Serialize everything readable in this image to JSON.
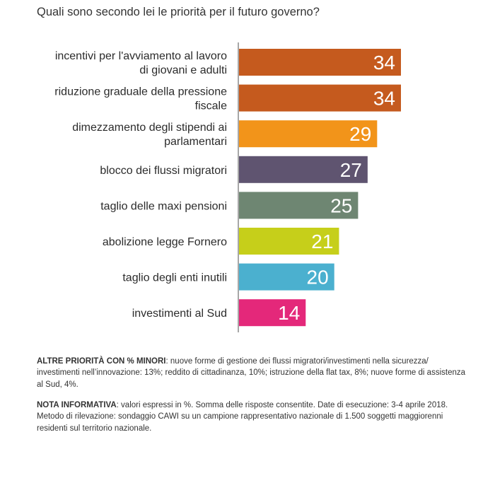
{
  "question": "Quali sono secondo lei le priorità per il futuro governo?",
  "chart_data": {
    "type": "bar",
    "orientation": "horizontal",
    "categories": [
      [
        "incentivi per l'avviamento al lavoro",
        "di giovani e adulti"
      ],
      [
        "riduzione graduale della pressione",
        "fiscale"
      ],
      [
        "dimezzamento degli stipendi ai",
        "parlamentari"
      ],
      [
        "blocco dei flussi migratori"
      ],
      [
        "taglio delle maxi pensioni"
      ],
      [
        "abolizione legge Fornero"
      ],
      [
        "taglio degli enti inutili"
      ],
      [
        "investimenti al Sud"
      ]
    ],
    "values": [
      34,
      34,
      29,
      27,
      25,
      21,
      20,
      14
    ],
    "colors": [
      "#c55a1e",
      "#c55a1e",
      "#f2941a",
      "#5f5470",
      "#6e8672",
      "#c6cf1a",
      "#4bb0cf",
      "#e4287a"
    ],
    "xlim": [
      0,
      34
    ],
    "grid": false,
    "legend": "none"
  },
  "notes": {
    "altre_heading": "ALTRE PRIORITÀ CON % MINORI",
    "altre_text": ": nuove forme di gestione dei flussi migratori/investimenti nella sicurezza/ investimenti nell’innovazione: 13%; reddito di cittadinanza, 10%; istruzione della flat tax, 8%; nuove forme di assistenza al Sud, 4%.",
    "nota_heading": "NOTA INFORMATIVA",
    "nota_text": ": valori espressi in %. Somma delle risposte consentite. Date di esecuzione: 3-4 aprile 2018. Metodo di rilevazione: sondaggio CAWI su un campione rappresentativo nazionale di 1.500 soggetti maggiorenni residenti sul territorio nazionale."
  }
}
